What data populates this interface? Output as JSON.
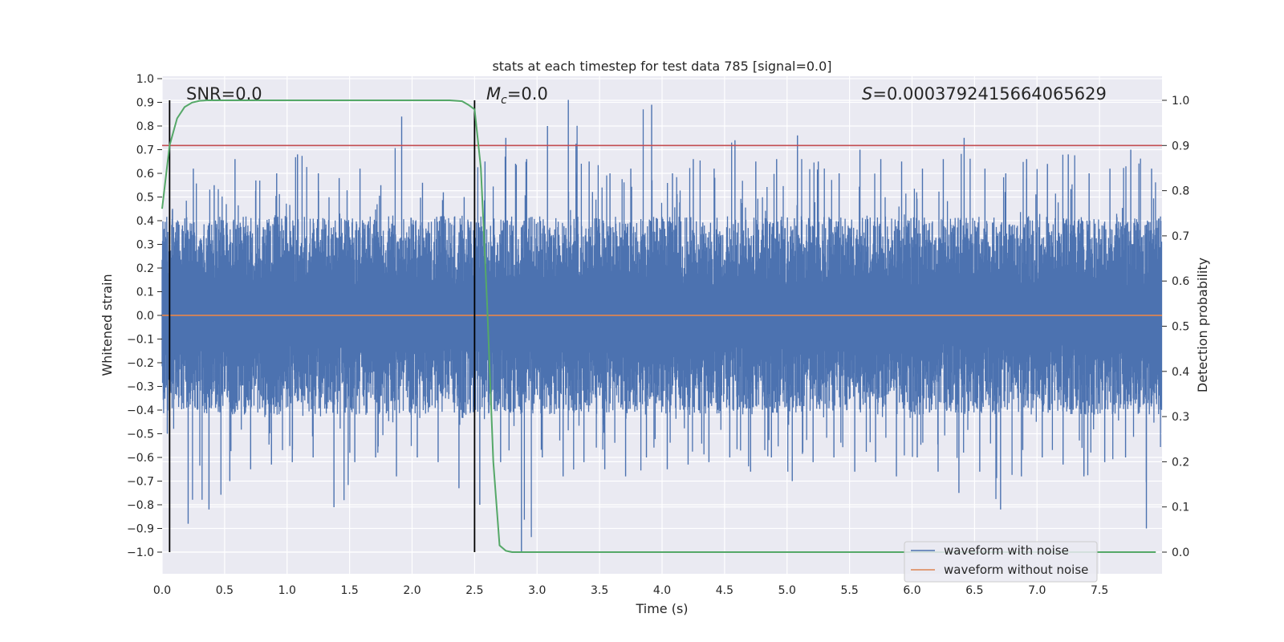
{
  "chart_data": {
    "type": "line",
    "title": "stats at each timestep for test data 785 [signal=0.0]",
    "xlabel": "Time (s)",
    "ylabel": "Whitened strain",
    "y2label": "Detection probability",
    "xlim": [
      0.0,
      8.0
    ],
    "ylim": [
      -1.0,
      1.0
    ],
    "y2lim": [
      0.0,
      1.0
    ],
    "x_ticks": [
      "0.0",
      "0.5",
      "1.0",
      "1.5",
      "2.0",
      "2.5",
      "3.0",
      "3.5",
      "4.0",
      "4.5",
      "5.0",
      "5.5",
      "6.0",
      "6.5",
      "7.0",
      "7.5"
    ],
    "y_ticks": [
      "−1.0",
      "−0.9",
      "−0.8",
      "−0.7",
      "−0.6",
      "−0.5",
      "−0.4",
      "−0.3",
      "−0.2",
      "−0.1",
      "0.0",
      "0.1",
      "0.2",
      "0.3",
      "0.4",
      "0.5",
      "0.6",
      "0.7",
      "0.8",
      "0.9",
      "1.0"
    ],
    "y2_ticks": [
      "0.0",
      "0.1",
      "0.2",
      "0.3",
      "0.4",
      "0.5",
      "0.6",
      "0.7",
      "0.8",
      "0.9",
      "1.0"
    ],
    "annotations": {
      "snr": "SNR=0.0",
      "mc_symbol": "M",
      "mc_sub": "c",
      "mc_value": "=0.0",
      "s_symbol": "S",
      "s_value": "=0.0003792415664065629"
    },
    "threshold_probability": 0.9,
    "vertical_markers_s": [
      0.06,
      2.5
    ],
    "series": [
      {
        "name": "waveform with noise",
        "color": "#4c72b0",
        "description": "dense whitened noise, approx. between -0.6 and 0.7, spikes to 0.91 and -1.0",
        "envelope_max": [
          0.45,
          0.62,
          0.55,
          0.66,
          0.57,
          0.6,
          0.68,
          0.6,
          0.58,
          0.62,
          0.55,
          0.84,
          0.56,
          0.52,
          0.5,
          0.65,
          0.75,
          0.66,
          0.8,
          0.91,
          0.65,
          0.6,
          0.62,
          0.89,
          0.6,
          0.66,
          0.62,
          0.74,
          0.65,
          0.66,
          0.76,
          0.65,
          0.6,
          0.7,
          0.66,
          0.65,
          0.62,
          0.66,
          0.75,
          0.62,
          0.6,
          0.66,
          0.64,
          0.68,
          0.6,
          0.62,
          0.7,
          0.62
        ],
        "envelope_min": [
          -0.5,
          -0.88,
          -0.82,
          -0.7,
          -0.65,
          -0.63,
          -0.62,
          -0.6,
          -0.81,
          -0.62,
          -0.6,
          -0.68,
          -0.6,
          -0.62,
          -0.73,
          -0.8,
          -0.62,
          -1.0,
          -0.6,
          -0.68,
          -0.62,
          -0.65,
          -0.68,
          -0.6,
          -0.65,
          -0.63,
          -0.62,
          -0.6,
          -0.66,
          -0.6,
          -0.7,
          -0.62,
          -0.6,
          -0.66,
          -0.62,
          -0.68,
          -0.6,
          -0.66,
          -0.75,
          -0.66,
          -0.82,
          -0.68,
          -0.6,
          -0.63,
          -0.68,
          -0.62,
          -0.6,
          -0.9
        ]
      },
      {
        "name": "waveform without noise",
        "color": "#dd8452",
        "x": [
          0.0,
          8.0
        ],
        "values": [
          0.0,
          0.0
        ]
      },
      {
        "name": "detection probability",
        "color": "#55a868",
        "axis": "right",
        "x": [
          0.0,
          0.06,
          0.12,
          0.18,
          0.24,
          0.3,
          0.36,
          0.5,
          1.0,
          1.5,
          2.0,
          2.3,
          2.4,
          2.45,
          2.5,
          2.55,
          2.6,
          2.65,
          2.7,
          2.75,
          2.8,
          3.0,
          4.0,
          5.0,
          6.0,
          7.0,
          7.95
        ],
        "values": [
          0.76,
          0.9,
          0.96,
          0.985,
          0.995,
          0.999,
          1.0,
          1.0,
          1.0,
          1.0,
          1.0,
          1.0,
          0.998,
          0.99,
          0.98,
          0.85,
          0.55,
          0.2,
          0.015,
          0.003,
          0.0,
          0.0,
          0.0,
          0.0,
          0.0,
          0.0,
          0.0
        ]
      }
    ],
    "legend": {
      "placement": "bottom-right",
      "items": [
        {
          "label": "waveform with noise",
          "color": "#4c72b0"
        },
        {
          "label": "waveform without noise",
          "color": "#dd8452"
        }
      ]
    }
  }
}
